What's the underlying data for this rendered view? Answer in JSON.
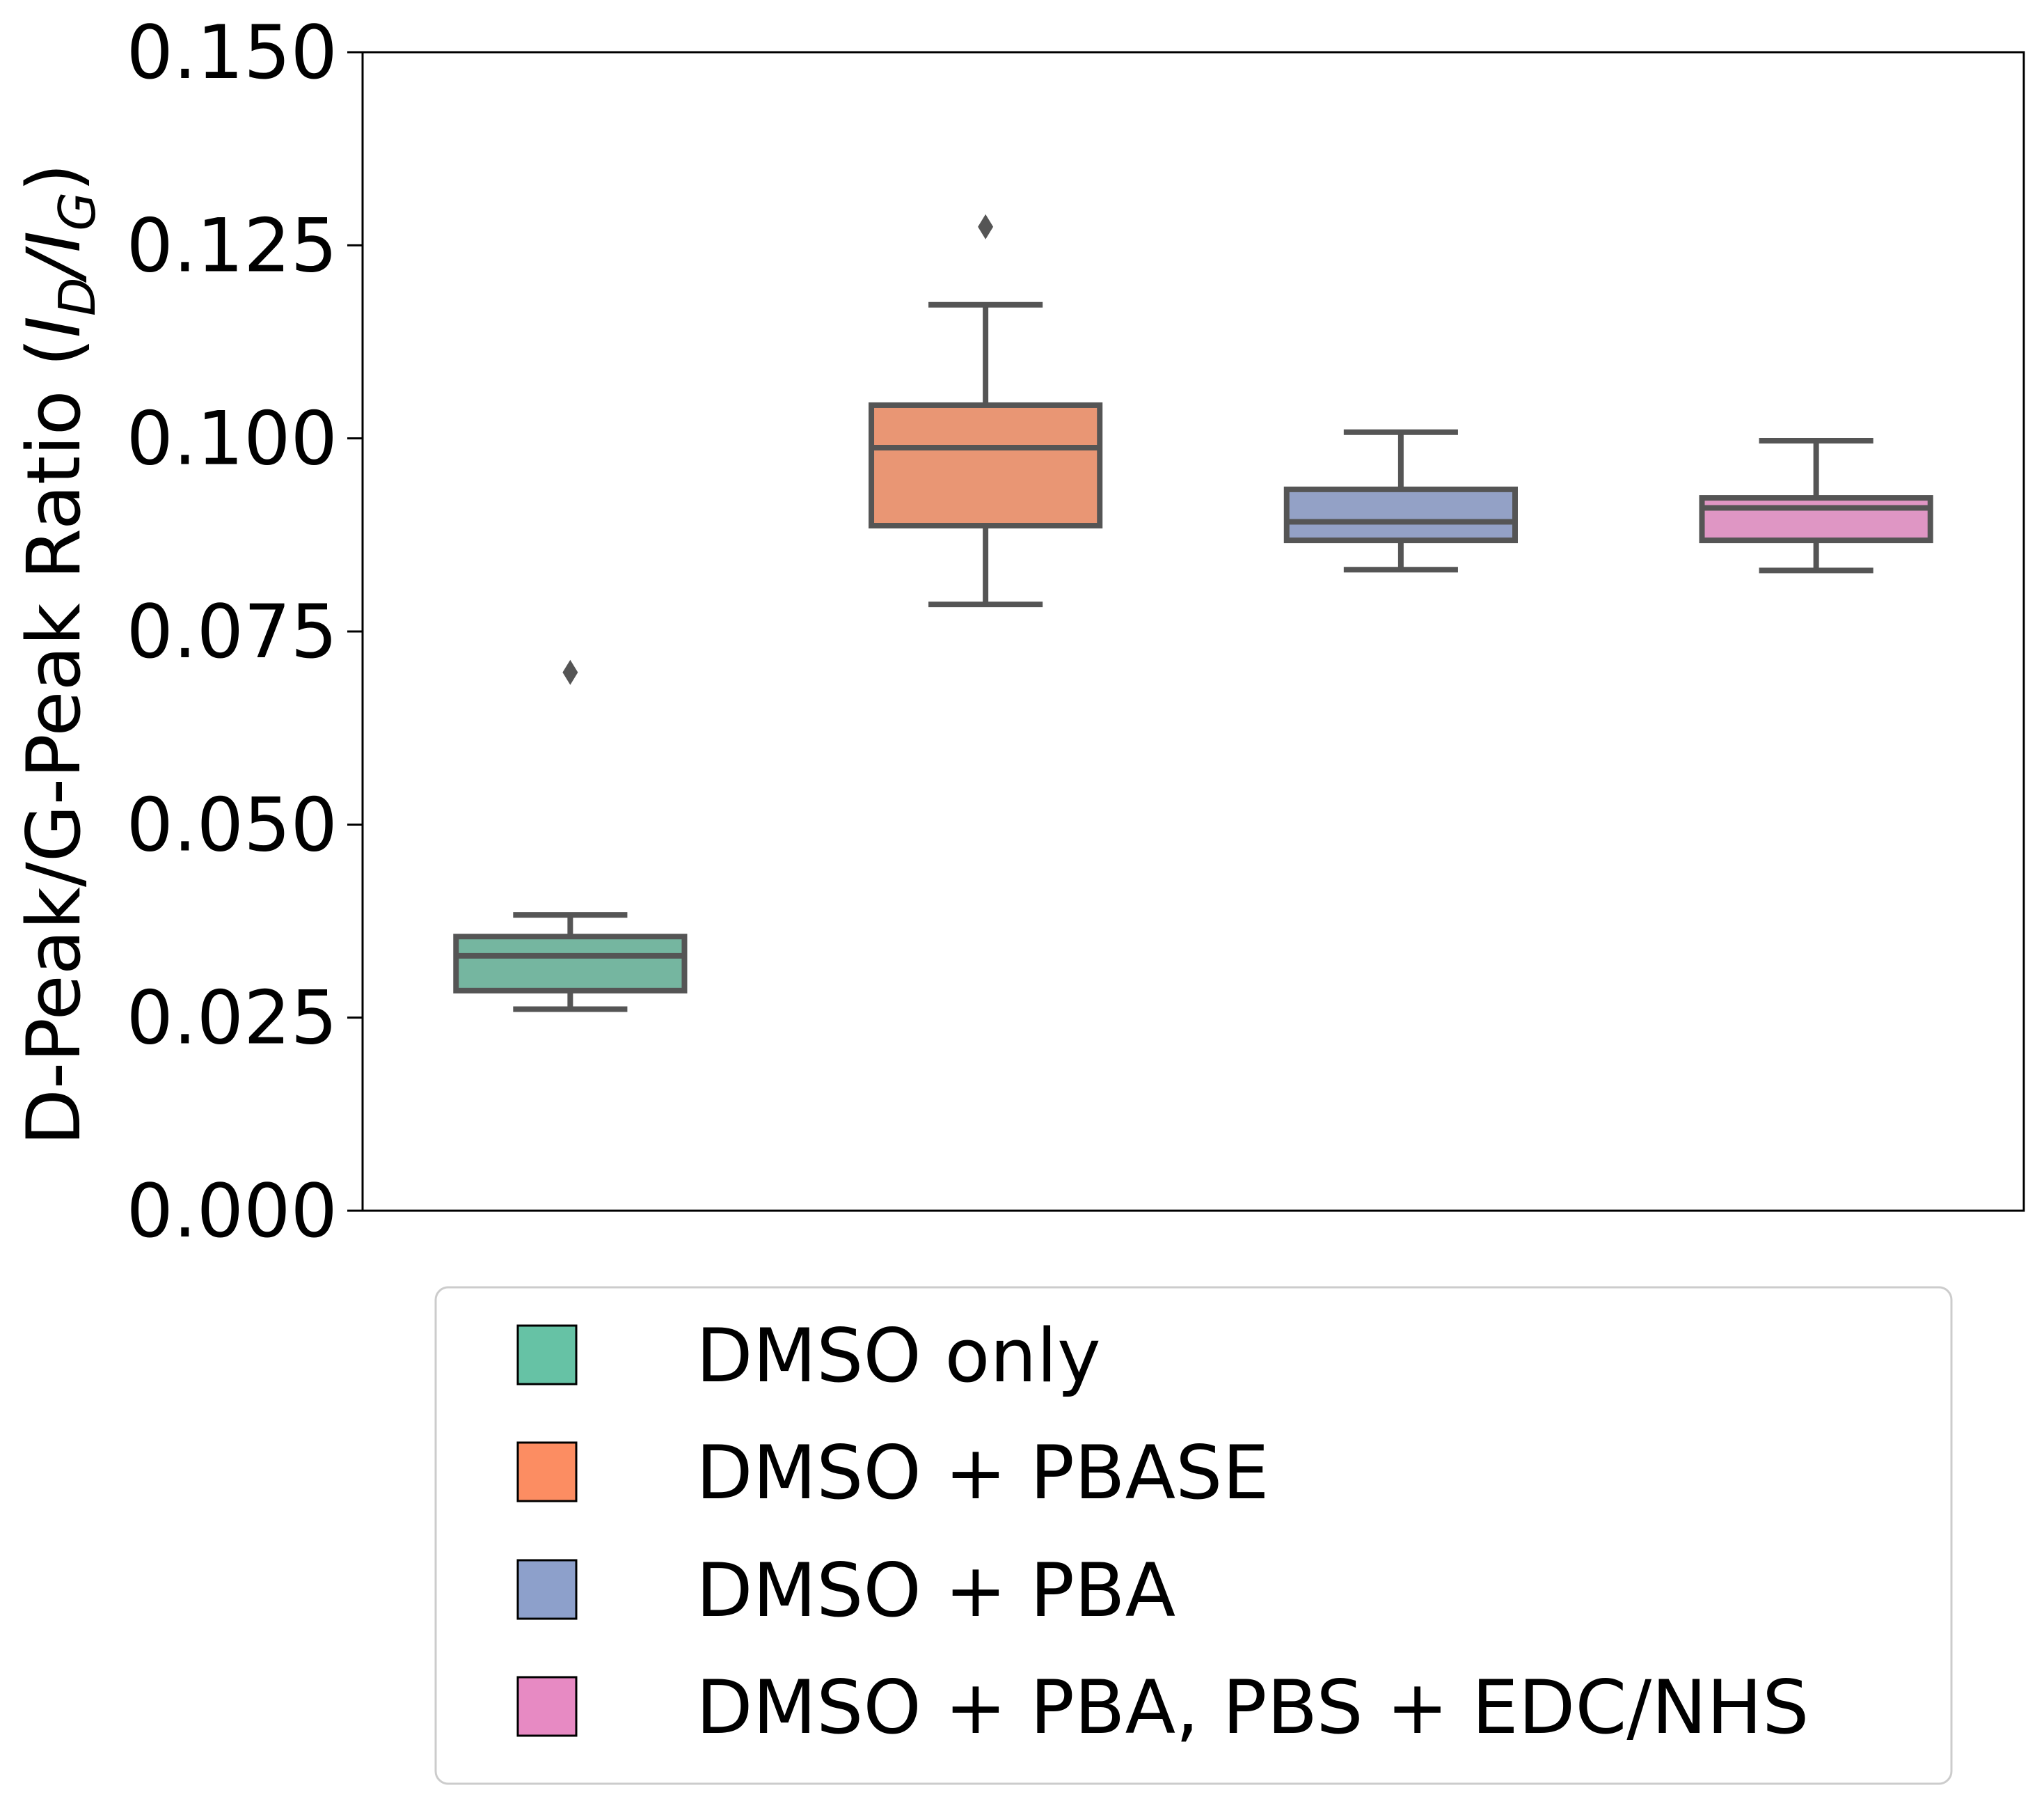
{
  "chart_data": {
    "type": "box",
    "ylabel": {
      "prefix": "D-Peak/G-Peak Ratio (",
      "i1": "I",
      "sub1": "D",
      "slash": "/",
      "i2": "I",
      "sub2": "G",
      "suffix": ")"
    },
    "ylim": [
      0,
      0.15
    ],
    "yticks": [
      "0.000",
      "0.025",
      "0.050",
      "0.075",
      "0.100",
      "0.125",
      "0.150"
    ],
    "grid": false,
    "legend_position": "bottom",
    "colors": {
      "box_edge": "#555555",
      "axis": "#000000",
      "legend_border": "#cccccc"
    },
    "series": [
      {
        "name": "DMSO only",
        "color": "#66c2a5",
        "box_fill": "#75b6a0",
        "whisker_low": 0.0261,
        "q1": 0.0285,
        "median": 0.033,
        "q3": 0.0355,
        "whisker_high": 0.0383,
        "outliers": [
          0.0697
        ]
      },
      {
        "name": "DMSO + PBASE",
        "color": "#fc8d62",
        "box_fill": "#e99674",
        "whisker_low": 0.0785,
        "q1": 0.0887,
        "median": 0.0988,
        "q3": 0.1043,
        "whisker_high": 0.1173,
        "outliers": [
          0.1274
        ]
      },
      {
        "name": "DMSO + PBA",
        "color": "#8da0cb",
        "box_fill": "#93a1c6",
        "whisker_low": 0.083,
        "q1": 0.0868,
        "median": 0.0892,
        "q3": 0.0934,
        "whisker_high": 0.1008,
        "outliers": []
      },
      {
        "name": "DMSO + PBA, PBS + EDC/NHS",
        "color": "#e78ac3",
        "box_fill": "#df96c4",
        "whisker_low": 0.0829,
        "q1": 0.0868,
        "median": 0.091,
        "q3": 0.0923,
        "whisker_high": 0.0997,
        "outliers": []
      }
    ]
  }
}
